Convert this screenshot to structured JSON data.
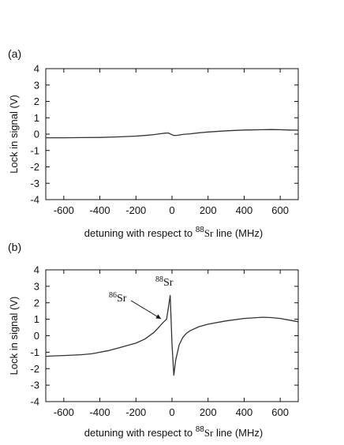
{
  "chart_data": [
    {
      "type": "line",
      "panel_label": "(a)",
      "xlabel": "detuning with respect to ",
      "xlabel_sup": "88",
      "xlabel_element": "Sr",
      "xlabel_tail": " line (MHz)",
      "ylabel": "Lock in signal (V)",
      "xlim": [
        -700,
        700
      ],
      "ylim": [
        -4,
        4
      ],
      "xticks": [
        -600,
        -400,
        -200,
        0,
        200,
        400,
        600
      ],
      "yticks": [
        -4,
        -3,
        -2,
        -1,
        0,
        1,
        2,
        3,
        4
      ],
      "series": [
        {
          "x": [
            -700,
            -600,
            -500,
            -400,
            -300,
            -200,
            -150,
            -100,
            -60,
            -40,
            -20,
            0,
            10,
            30,
            60,
            100,
            150,
            200,
            300,
            400,
            500,
            550,
            600,
            650,
            700
          ],
          "y": [
            -0.22,
            -0.22,
            -0.21,
            -0.2,
            -0.17,
            -0.12,
            -0.08,
            -0.03,
            0.03,
            0.06,
            0.07,
            -0.04,
            -0.08,
            -0.07,
            -0.02,
            0.02,
            0.08,
            0.13,
            0.2,
            0.25,
            0.27,
            0.28,
            0.27,
            0.25,
            0.24
          ]
        }
      ],
      "annotations": []
    },
    {
      "type": "line",
      "panel_label": "(b)",
      "xlabel": "detuning with respect to ",
      "xlabel_sup": "88",
      "xlabel_element": "Sr",
      "xlabel_tail": " line (MHz)",
      "ylabel": "Lock in signal (V)",
      "xlim": [
        -700,
        700
      ],
      "ylim": [
        -4,
        4
      ],
      "xticks": [
        -600,
        -400,
        -200,
        0,
        200,
        400,
        600
      ],
      "yticks": [
        -4,
        -3,
        -2,
        -1,
        0,
        1,
        2,
        3,
        4
      ],
      "series": [
        {
          "x": [
            -700,
            -650,
            -600,
            -550,
            -500,
            -450,
            -420,
            -400,
            -350,
            -300,
            -250,
            -200,
            -150,
            -100,
            -70,
            -50,
            -30,
            -20,
            -10,
            0,
            10,
            20,
            40,
            60,
            80,
            100,
            150,
            200,
            300,
            400,
            500,
            550,
            600,
            650,
            700
          ],
          "y": [
            -1.25,
            -1.22,
            -1.2,
            -1.18,
            -1.15,
            -1.1,
            -1.05,
            -1.0,
            -0.9,
            -0.75,
            -0.6,
            -0.45,
            -0.2,
            0.2,
            0.55,
            0.8,
            1.0,
            1.7,
            2.45,
            -0.5,
            -2.4,
            -1.5,
            -0.55,
            -0.1,
            0.15,
            0.3,
            0.55,
            0.7,
            0.9,
            1.05,
            1.12,
            1.1,
            1.05,
            0.95,
            0.85
          ]
        }
      ],
      "annotations": [
        {
          "sup": "88",
          "element": "Sr"
        },
        {
          "sup": "86",
          "element": "Sr"
        }
      ]
    }
  ]
}
